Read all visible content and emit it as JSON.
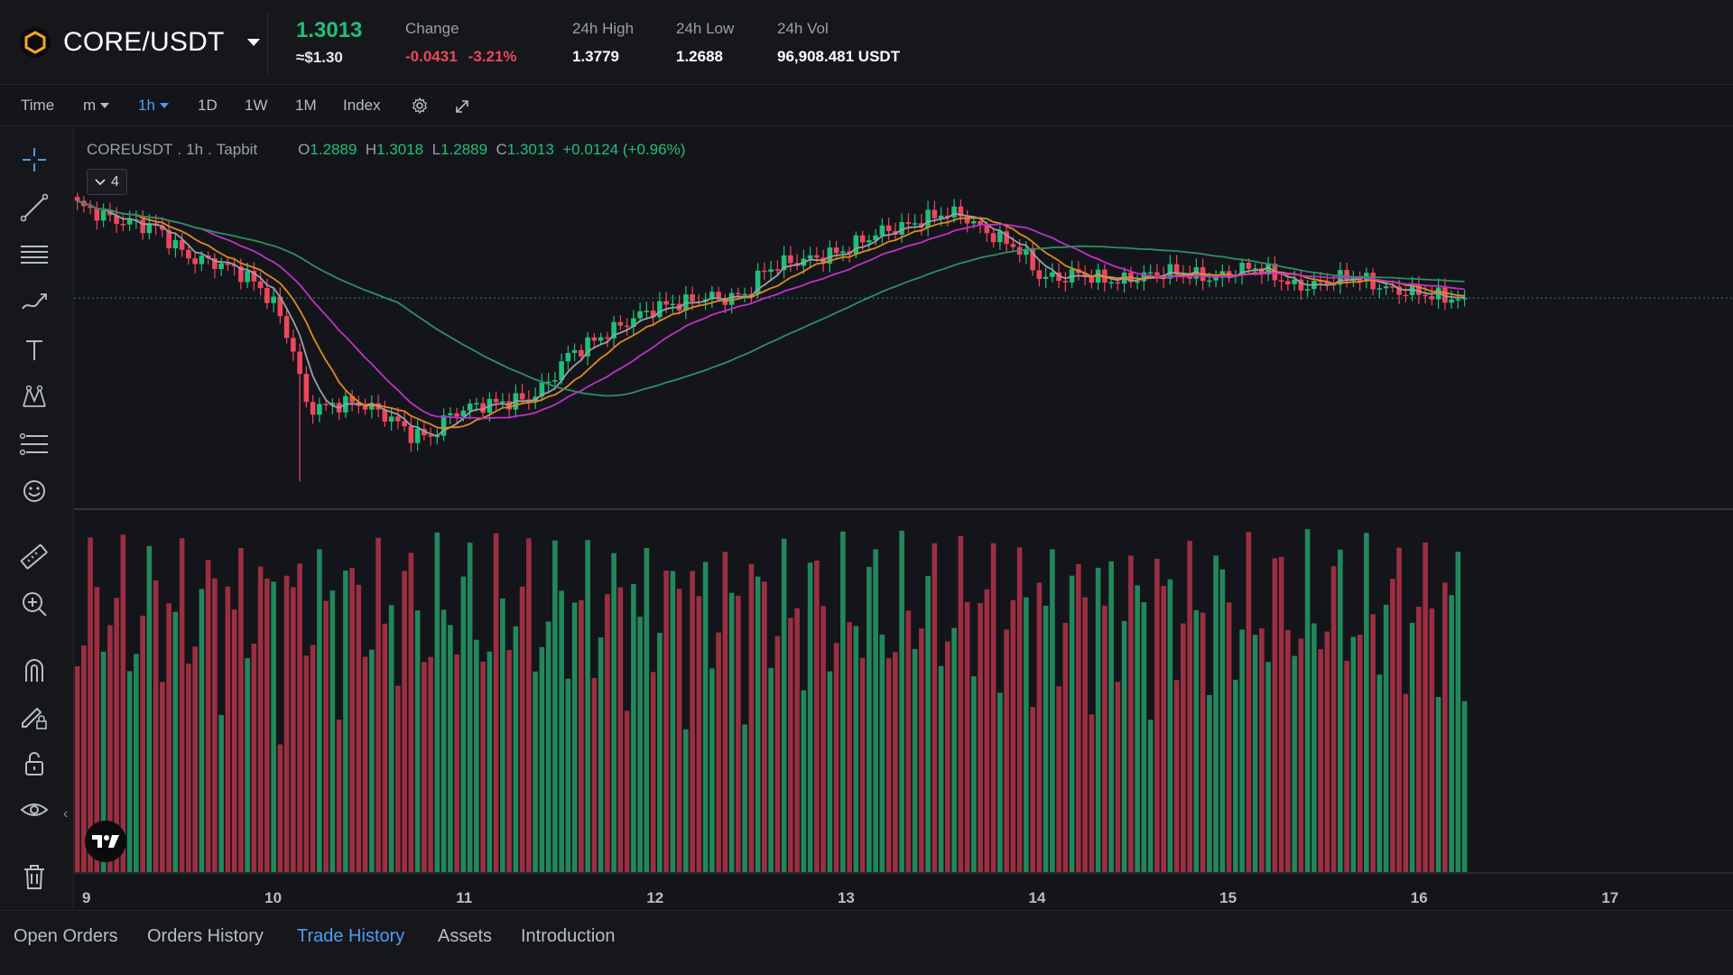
{
  "header": {
    "pair": "CORE/USDT",
    "last_price": "1.3013",
    "fiat_price": "≈$1.30",
    "change_label": "Change",
    "change_abs": "-0.0431",
    "change_pct": "-3.21%",
    "high_label": "24h High",
    "high_value": "1.3779",
    "low_label": "24h Low",
    "low_value": "1.2688",
    "vol_label": "24h Vol",
    "vol_value": "96,908.481 USDT"
  },
  "toolbar": {
    "time": "Time",
    "minutes": "m",
    "hour": "1h",
    "day": "1D",
    "week": "1W",
    "month": "1M",
    "index": "Index"
  },
  "legend": {
    "symbol": "COREUSDT",
    "interval": "1h",
    "exchange": "Tapbit",
    "o_label": "O",
    "o": "1.2889",
    "h_label": "H",
    "h": "1.3018",
    "l_label": "L",
    "l": "1.2889",
    "c_label": "C",
    "c": "1.3013",
    "change": "+0.0124 (+0.96%)",
    "indicator_count": "4"
  },
  "colors": {
    "up": "#1fbf7a",
    "down": "#f0455e",
    "accent": "#4c9bf5",
    "ma_fast": "#9aa0a6",
    "ma_mid": "#e08a1e",
    "ma_slow": "#c030c8",
    "ma_long": "#2e8f62"
  },
  "tools": [
    "crosshair-icon",
    "trend-line-icon",
    "horizontal-lines-icon",
    "brush-icon",
    "text-icon",
    "pattern-icon",
    "fib-icon",
    "emoji-icon",
    "ruler-icon",
    "zoom-in-icon",
    "magnet-icon",
    "lock-drawing-icon",
    "unlock-icon",
    "eye-icon",
    "trash-icon"
  ],
  "chart_data": {
    "type": "candlestick",
    "interval": "1h",
    "x_ticks": [
      "9",
      "10",
      "11",
      "12",
      "13",
      "14",
      "15",
      "16",
      "17"
    ],
    "y_range": [
      1.15,
      1.4
    ],
    "last_close": 1.3013,
    "price_path": [
      [
        0,
        1.372
      ],
      [
        6,
        1.36
      ],
      [
        12,
        1.355
      ],
      [
        17,
        1.332
      ],
      [
        22,
        1.327
      ],
      [
        26,
        1.318
      ],
      [
        30,
        1.298
      ],
      [
        33,
        1.262
      ],
      [
        35,
        1.22
      ],
      [
        37,
        1.218
      ],
      [
        41,
        1.222
      ],
      [
        44,
        1.22
      ],
      [
        48,
        1.21
      ],
      [
        51,
        1.198
      ],
      [
        54,
        1.196
      ],
      [
        57,
        1.213
      ],
      [
        61,
        1.22
      ],
      [
        65,
        1.222
      ],
      [
        69,
        1.225
      ],
      [
        72,
        1.237
      ],
      [
        75,
        1.258
      ],
      [
        78,
        1.266
      ],
      [
        81,
        1.275
      ],
      [
        84,
        1.283
      ],
      [
        87,
        1.291
      ],
      [
        90,
        1.296
      ],
      [
        93,
        1.298
      ],
      [
        96,
        1.302
      ],
      [
        99,
        1.301
      ],
      [
        102,
        1.304
      ],
      [
        105,
        1.322
      ],
      [
        108,
        1.328
      ],
      [
        111,
        1.33
      ],
      [
        114,
        1.333
      ],
      [
        117,
        1.337
      ],
      [
        120,
        1.345
      ],
      [
        123,
        1.352
      ],
      [
        126,
        1.355
      ],
      [
        129,
        1.36
      ],
      [
        132,
        1.365
      ],
      [
        135,
        1.365
      ],
      [
        138,
        1.354
      ],
      [
        141,
        1.346
      ],
      [
        144,
        1.338
      ],
      [
        147,
        1.318
      ],
      [
        150,
        1.316
      ],
      [
        153,
        1.32
      ],
      [
        156,
        1.316
      ],
      [
        159,
        1.314
      ],
      [
        162,
        1.317
      ],
      [
        165,
        1.32
      ],
      [
        168,
        1.321
      ],
      [
        171,
        1.318
      ],
      [
        174,
        1.316
      ],
      [
        177,
        1.322
      ],
      [
        180,
        1.325
      ],
      [
        183,
        1.318
      ],
      [
        186,
        1.31
      ],
      [
        189,
        1.311
      ],
      [
        192,
        1.315
      ],
      [
        195,
        1.318
      ],
      [
        198,
        1.312
      ],
      [
        201,
        1.307
      ],
      [
        204,
        1.306
      ],
      [
        207,
        1.303
      ],
      [
        212,
        1.3
      ]
    ],
    "volume_range": [
      0,
      100
    ]
  },
  "bottom_tabs": {
    "open_orders": "Open Orders",
    "orders_history": "Orders History",
    "trade_history": "Trade History",
    "assets": "Assets",
    "introduction": "Introduction"
  }
}
